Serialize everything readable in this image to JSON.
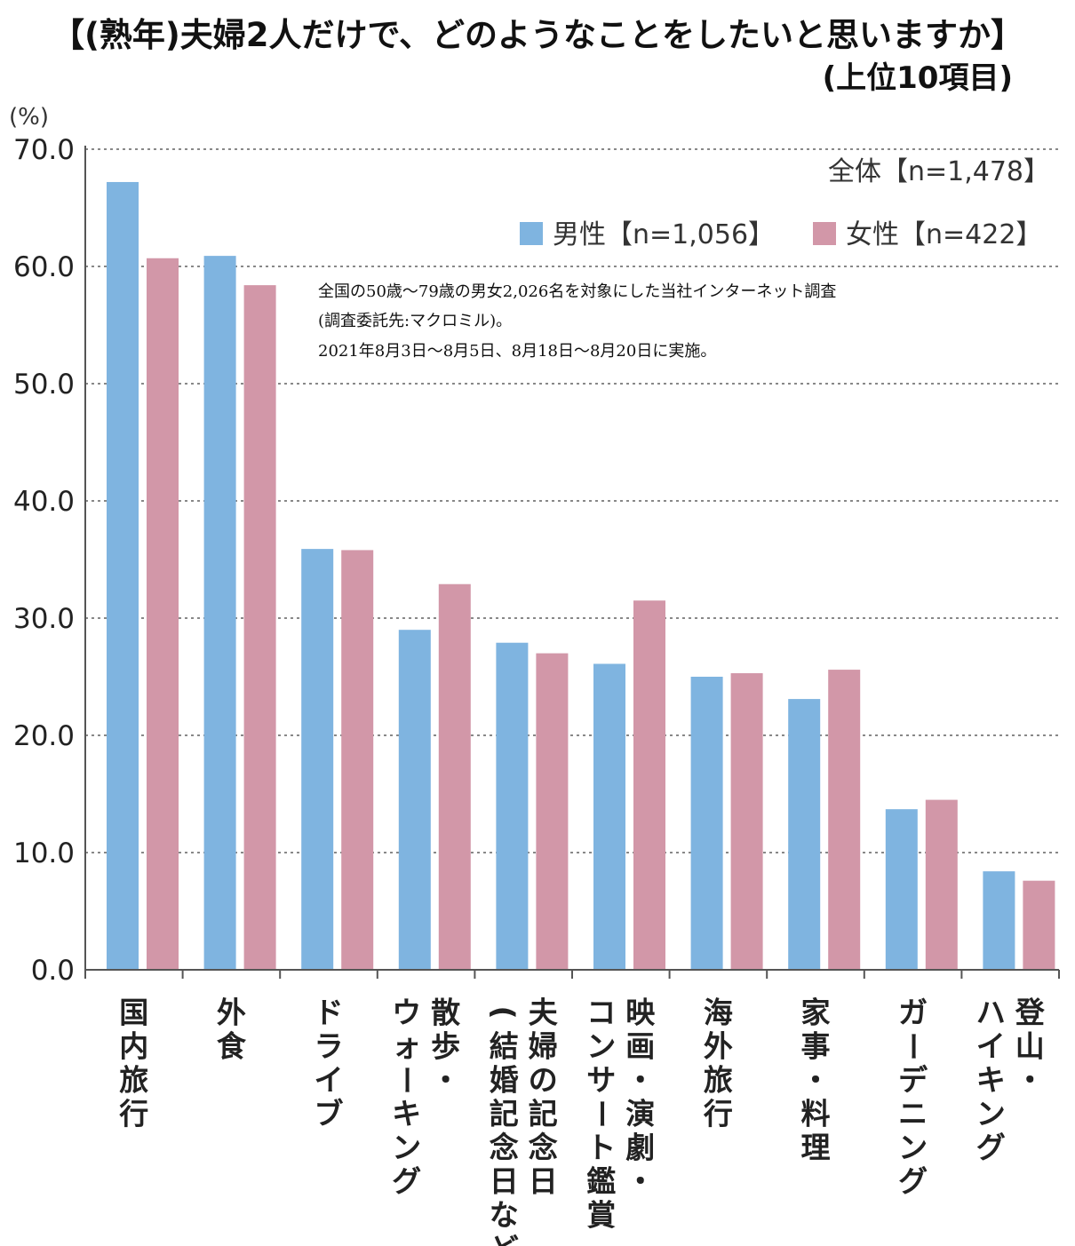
{
  "title": "【(熟年)夫婦2人だけで、どのようなことをしたいと思いますか】",
  "subtitle": "(上位10項目)",
  "colors": {
    "male": "#7fb4e0",
    "female": "#d297a8",
    "grid": "#888888",
    "axis": "#555555"
  },
  "legend": {
    "total": "全体【n=1,478】",
    "male": "男性【n=1,056】",
    "female": "女性【n=422】"
  },
  "note": [
    "全国の50歳〜79歳の男女2,026名を対象にした当社インターネット調査",
    "(調査委託先:マクロミル)。",
    "2021年8月3日〜8月5日、8月18日〜8月20日に実施。"
  ],
  "chart_data": {
    "type": "bar",
    "ylabel": "(%)",
    "ylim": [
      0,
      70
    ],
    "yticks": [
      "0.0",
      "10.0",
      "20.0",
      "30.0",
      "40.0",
      "50.0",
      "60.0",
      "70.0"
    ],
    "grid": true,
    "legend_position": "top-right",
    "categories": [
      [
        "国内旅行"
      ],
      [
        "外食"
      ],
      [
        "ドライブ"
      ],
      [
        "ウォーキング",
        "散歩・"
      ],
      [
        "(結婚記念日など)",
        "夫婦の記念日"
      ],
      [
        "コンサート鑑賞",
        "映画・演劇・"
      ],
      [
        "海外旅行"
      ],
      [
        "家事・料理"
      ],
      [
        "ガーデニング"
      ],
      [
        "ハイキング",
        "登山・"
      ]
    ],
    "series": [
      {
        "name": "男性【n=1,056】",
        "values": [
          67.2,
          60.9,
          35.9,
          29.0,
          27.9,
          26.1,
          25.0,
          23.1,
          13.7,
          8.4
        ]
      },
      {
        "name": "女性【n=422】",
        "values": [
          60.7,
          58.4,
          35.8,
          32.9,
          27.0,
          31.5,
          25.3,
          25.6,
          14.5,
          7.6
        ]
      }
    ]
  }
}
